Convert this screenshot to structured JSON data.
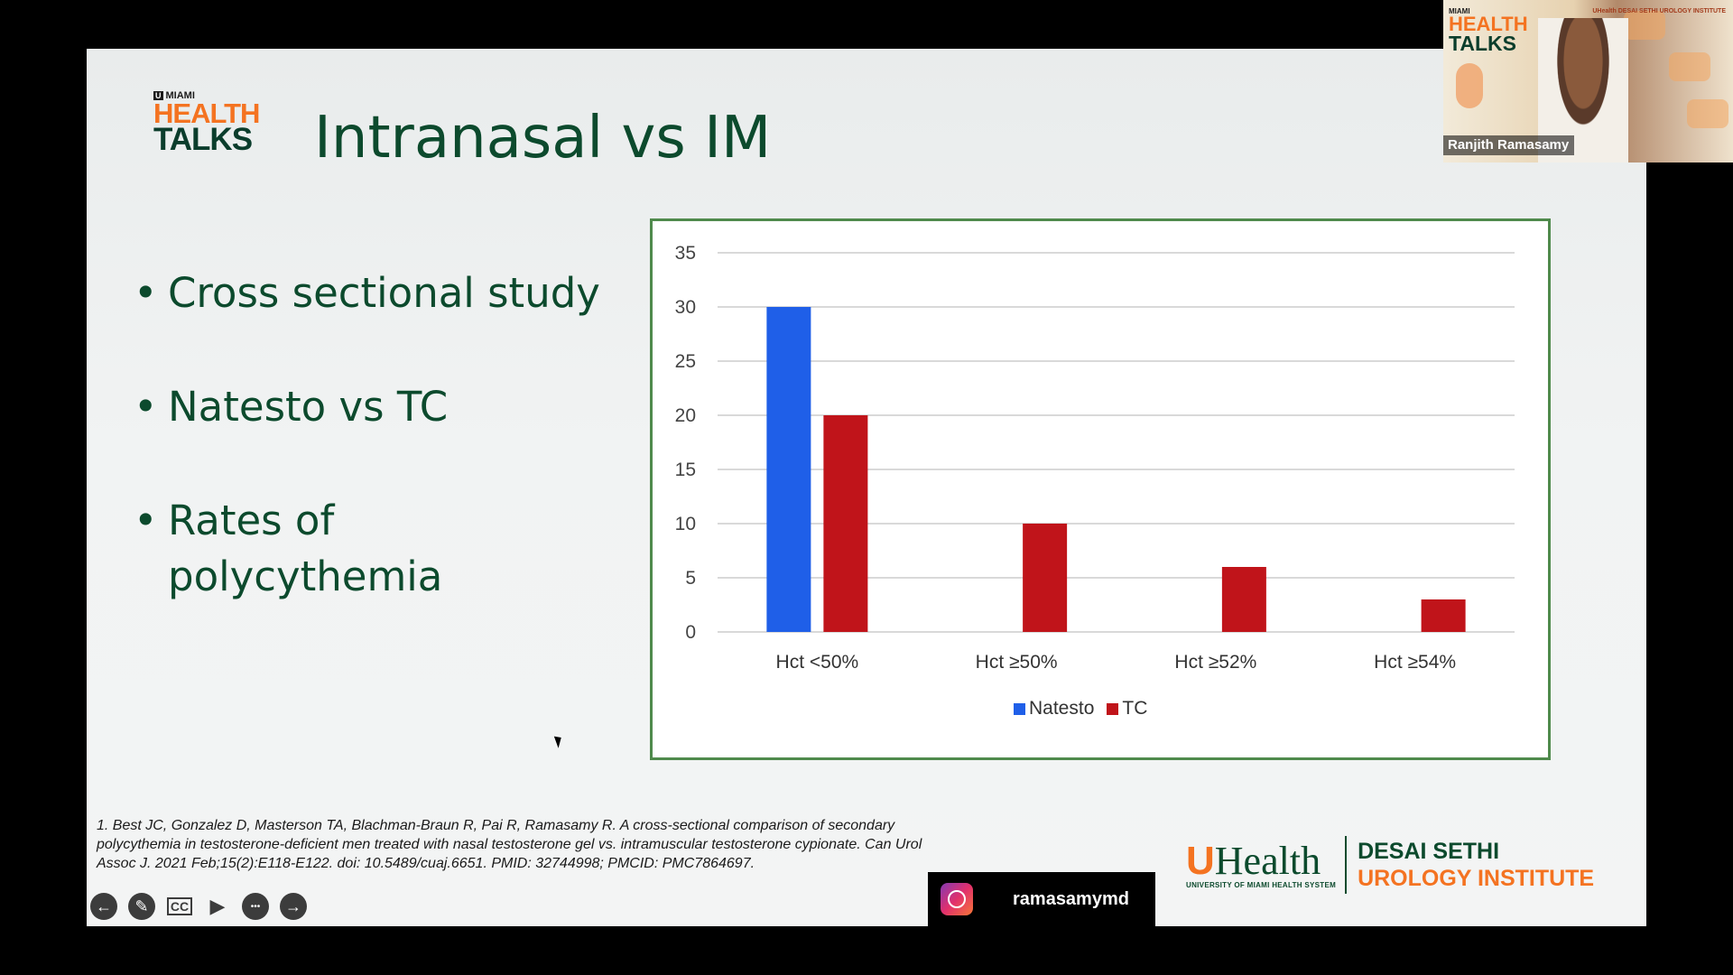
{
  "slide": {
    "title": "Intranasal vs IM",
    "logo": {
      "small": "MIAMI",
      "line1": "HEALTH",
      "line2": "TALKS"
    },
    "bullets": [
      "Cross sectional study",
      "Natesto vs TC",
      "Rates of polycythemia"
    ],
    "citation": "1. Best JC, Gonzalez D, Masterson TA, Blachman-Braun R, Pai R, Ramasamy R. A cross-sectional comparison of secondary polycythemia in testosterone-deficient men treated with nasal testosterone gel vs. intramuscular testosterone cypionate. Can Urol Assoc J. 2021 Feb;15(2):E118-E122. doi: 10.5489/cuaj.6651. PMID: 32744998; PMCID: PMC7864697.",
    "instagram_handle": "ramasamymd",
    "brand": {
      "uhealth_u": "U",
      "uhealth": "Health",
      "uhealth_sub": "UNIVERSITY OF MIAMI HEALTH SYSTEM",
      "institute_line1": "DESAI SETHI",
      "institute_line2": "UROLOGY INSTITUTE"
    }
  },
  "webcam": {
    "name": "Ranjith Ramasamy",
    "logo_small": "MIAMI",
    "logo_line1": "HEALTH",
    "logo_line2": "TALKS",
    "brand_text": "UHealth DESAI SETHI UROLOGY INSTITUTE"
  },
  "controls": [
    {
      "name": "previous-slide-button",
      "icon": "arrow-left-icon",
      "glyph": "←"
    },
    {
      "name": "pen-tool-button",
      "icon": "pen-icon",
      "glyph": "✎"
    },
    {
      "name": "captions-button",
      "icon": "cc-icon",
      "glyph": "CC"
    },
    {
      "name": "camera-button",
      "icon": "video-camera-icon",
      "glyph": "▶"
    },
    {
      "name": "more-options-button",
      "icon": "ellipsis-icon",
      "glyph": "•••"
    },
    {
      "name": "next-slide-button",
      "icon": "arrow-right-icon",
      "glyph": "→"
    }
  ],
  "chart_data": {
    "type": "bar",
    "categories": [
      "Hct <50%",
      "Hct ≥50%",
      "Hct ≥52%",
      "Hct ≥54%"
    ],
    "series": [
      {
        "name": "Natesto",
        "values": [
          30,
          0,
          0,
          0
        ],
        "color": "#1f5fe8"
      },
      {
        "name": "TC",
        "values": [
          20,
          10,
          6,
          3
        ],
        "color": "#c0141a"
      }
    ],
    "ylim": [
      0,
      35
    ],
    "yticks": [
      0,
      5,
      10,
      15,
      20,
      25,
      30,
      35
    ],
    "grid": true,
    "legend": "bottom"
  }
}
